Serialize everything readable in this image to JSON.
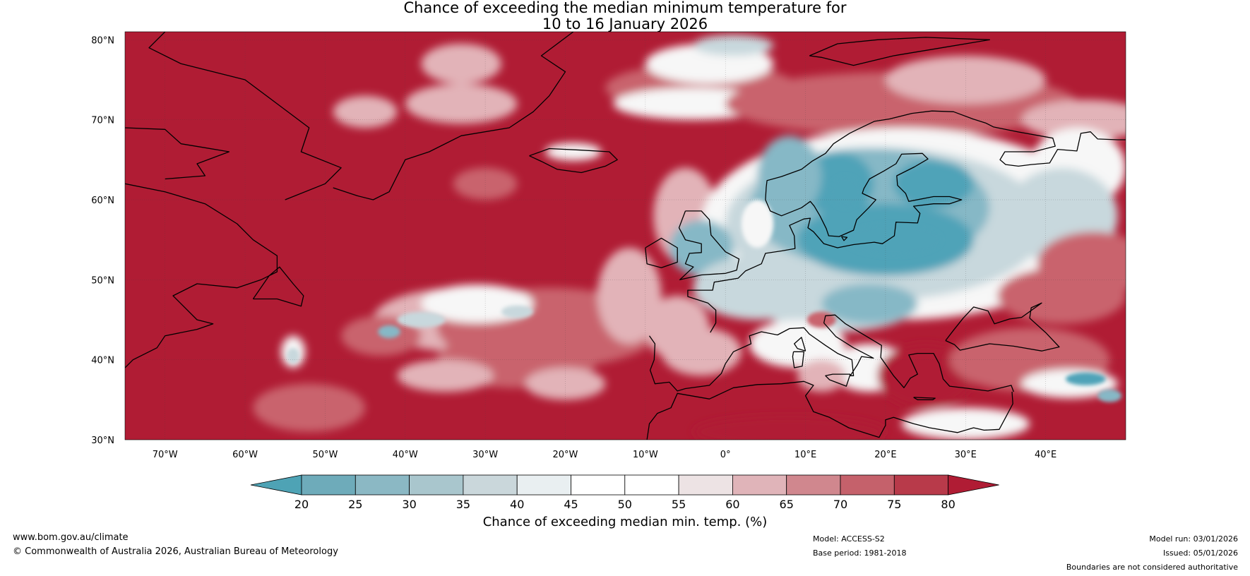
{
  "title_line1": "Chance of exceeding the median minimum temperature for",
  "title_line2": "10 to 16 January 2026",
  "map": {
    "lon_range": [
      -75,
      50
    ],
    "lat_range": [
      30,
      81
    ],
    "lat_ticks": [
      "80°N",
      "70°N",
      "60°N",
      "50°N",
      "40°N",
      "30°N"
    ],
    "lat_values": [
      80,
      70,
      60,
      50,
      40,
      30
    ],
    "lon_ticks": [
      "70°W",
      "60°W",
      "50°W",
      "40°W",
      "30°W",
      "20°W",
      "10°W",
      "0°",
      "10°E",
      "20°E",
      "30°E",
      "40°E"
    ],
    "lon_values": [
      -70,
      -60,
      -50,
      -40,
      -30,
      -20,
      -10,
      0,
      10,
      20,
      30,
      40
    ],
    "colors": {
      "warm_dark": "#b01c34",
      "warm_mid": "#c9636d",
      "warm_light": "#e2b3b8",
      "neutral": "#f7f7f7",
      "cool_light": "#c8d8dd",
      "cool_mid": "#86b8c6",
      "cool_dark": "#4fa3b8",
      "coast": "#000000"
    }
  },
  "colorbar": {
    "title": "Chance of exceeding median min. temp. (%)",
    "ticks": [
      "20",
      "25",
      "30",
      "35",
      "40",
      "45",
      "50",
      "55",
      "60",
      "65",
      "70",
      "75",
      "80"
    ],
    "colors": [
      "#4ea3b5",
      "#6eabba",
      "#8bb8c4",
      "#a9c6cd",
      "#cad7db",
      "#e9eff1",
      "#ffffff",
      "#ffffff",
      "#ede3e4",
      "#e0b4b9",
      "#d0878e",
      "#c5616b",
      "#b83a4a",
      "#b01c34"
    ]
  },
  "footer": {
    "website": "www.bom.gov.au/climate",
    "copyright": "© Commonwealth of Australia 2026, Australian Bureau of Meteorology",
    "model": "Model: ACCESS-S2",
    "base_period": "Base period: 1981-2018",
    "model_run": "Model run: 03/01/2026",
    "issued": "Issued: 05/01/2026",
    "disclaimer": "Boundaries are not considered authoritative"
  }
}
